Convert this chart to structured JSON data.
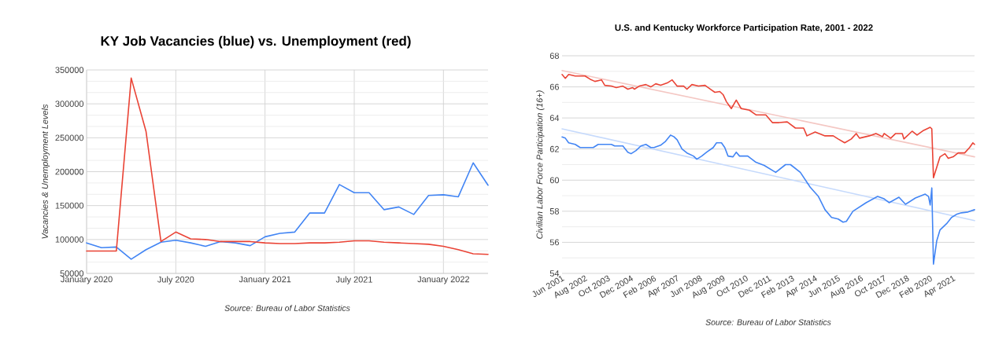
{
  "chart_data": [
    {
      "type": "line",
      "title": "KY Job Vacancies (blue) vs. Unemployment (red)",
      "ylabel": "Vacancies & Unemployment Levels",
      "annotations": [
        "Source: Bureau of Labor Statistics"
      ],
      "x": [
        "2020-01",
        "2020-02",
        "2020-03",
        "2020-04",
        "2020-05",
        "2020-06",
        "2020-07",
        "2020-08",
        "2020-09",
        "2020-10",
        "2020-11",
        "2020-12",
        "2021-01",
        "2021-02",
        "2021-03",
        "2021-04",
        "2021-05",
        "2021-06",
        "2021-07",
        "2021-08",
        "2021-09",
        "2021-10",
        "2021-11",
        "2021-12",
        "2022-01",
        "2022-02",
        "2022-03",
        "2022-04"
      ],
      "xlim": [
        "2020-01",
        "2022-04"
      ],
      "xticks": [
        {
          "value": "2020-01",
          "label": "January 2020"
        },
        {
          "value": "2020-07",
          "label": "July 2020"
        },
        {
          "value": "2021-01",
          "label": "January 2021"
        },
        {
          "value": "2021-07",
          "label": "July 2021"
        },
        {
          "value": "2022-01",
          "label": "January 2022"
        }
      ],
      "ylim": [
        50000,
        350000
      ],
      "yticks": [
        50000,
        100000,
        150000,
        200000,
        250000,
        300000,
        350000
      ],
      "grid": true,
      "series": [
        {
          "color": "#4285f4",
          "values": [
            95000,
            88000,
            89000,
            71000,
            85000,
            96000,
            99000,
            95000,
            90000,
            97000,
            95000,
            91000,
            104000,
            109000,
            111000,
            139000,
            139000,
            181000,
            169000,
            169000,
            144000,
            148000,
            137000,
            165000,
            166000,
            163000,
            213000,
            180000
          ]
        },
        {
          "color": "#ea4335",
          "values": [
            83000,
            83000,
            83000,
            338000,
            259000,
            97000,
            111000,
            101000,
            100000,
            97000,
            97000,
            97000,
            95000,
            94000,
            94000,
            95000,
            95000,
            96000,
            98000,
            98000,
            96000,
            95000,
            94000,
            93000,
            90000,
            85000,
            79000,
            78000
          ]
        }
      ]
    },
    {
      "type": "line",
      "title": "U.S. and Kentucky Workforce Participation Rate, 2001 - 2022",
      "ylabel": "Civilian Labor Force Participation (16+)",
      "annotations": [
        "Source: Bureau of Labor Statistics"
      ],
      "xlim": [
        "2001-06",
        "2022-05"
      ],
      "xticks": [
        {
          "value": "2001-06",
          "label": "Jun 2001"
        },
        {
          "value": "2002-08",
          "label": "Aug 2002"
        },
        {
          "value": "2003-10",
          "label": "Oct 2003"
        },
        {
          "value": "2004-12",
          "label": "Dec 2004"
        },
        {
          "value": "2006-02",
          "label": "Feb 2006"
        },
        {
          "value": "2007-04",
          "label": "Apr 2007"
        },
        {
          "value": "2008-06",
          "label": "Jun 2008"
        },
        {
          "value": "2009-08",
          "label": "Aug 2009"
        },
        {
          "value": "2010-10",
          "label": "Oct 2010"
        },
        {
          "value": "2011-12",
          "label": "Dec 2011"
        },
        {
          "value": "2013-02",
          "label": "Feb 2013"
        },
        {
          "value": "2014-04",
          "label": "Apr 2014"
        },
        {
          "value": "2015-06",
          "label": "Jun 2015"
        },
        {
          "value": "2016-08",
          "label": "Aug 2016"
        },
        {
          "value": "2017-10",
          "label": "Oct 2017"
        },
        {
          "value": "2018-12",
          "label": "Dec 2018"
        },
        {
          "value": "2020-02",
          "label": "Feb 2020"
        },
        {
          "value": "2021-04",
          "label": "Apr 2021"
        }
      ],
      "ylim": [
        54,
        68
      ],
      "yticks": [
        54,
        56,
        58,
        60,
        62,
        64,
        66,
        68
      ],
      "grid": "y",
      "series": [
        {
          "type": "line",
          "color": "#f4c7c3",
          "x": [
            "2001-06",
            "2022-05"
          ],
          "values": [
            67.05,
            61.5
          ]
        },
        {
          "type": "line",
          "color": "#c6dafc",
          "x": [
            "2001-06",
            "2022-05"
          ],
          "values": [
            63.3,
            57.4
          ]
        },
        {
          "color": "#ea4335",
          "x": [
            "2001-06",
            "2001-08",
            "2001-10",
            "2002-02",
            "2002-08",
            "2002-11",
            "2003-02",
            "2003-06",
            "2003-08",
            "2003-12",
            "2004-03",
            "2004-07",
            "2004-10",
            "2005-01",
            "2005-02",
            "2005-05",
            "2005-09",
            "2005-12",
            "2006-03",
            "2006-06",
            "2006-10",
            "2007-01",
            "2007-04",
            "2007-08",
            "2007-10",
            "2008-01",
            "2008-05",
            "2008-09",
            "2009-01",
            "2009-03",
            "2009-06",
            "2009-08",
            "2009-10",
            "2010-01",
            "2010-04",
            "2010-07",
            "2010-12",
            "2011-04",
            "2011-10",
            "2012-02",
            "2012-06",
            "2012-11",
            "2013-04",
            "2013-09",
            "2013-11",
            "2014-04",
            "2014-10",
            "2015-03",
            "2015-06",
            "2015-10",
            "2016-02",
            "2016-05",
            "2016-07",
            "2017-01",
            "2017-05",
            "2017-09",
            "2017-10",
            "2018-02",
            "2018-05",
            "2018-09",
            "2018-10",
            "2019-03",
            "2019-06",
            "2019-10",
            "2020-02",
            "2020-03",
            "2020-04",
            "2020-08",
            "2020-11",
            "2021-01",
            "2021-04",
            "2021-07",
            "2021-11",
            "2022-02",
            "2022-04",
            "2022-05"
          ],
          "values": [
            66.8,
            66.55,
            66.8,
            66.7,
            66.7,
            66.5,
            66.35,
            66.45,
            66.1,
            66.05,
            65.95,
            66.05,
            65.85,
            65.95,
            65.85,
            66.05,
            66.15,
            66.0,
            66.2,
            66.1,
            66.25,
            66.45,
            66.05,
            66.05,
            65.85,
            66.15,
            66.05,
            66.1,
            65.8,
            65.65,
            65.7,
            65.5,
            65.05,
            64.6,
            65.15,
            64.6,
            64.5,
            64.2,
            64.2,
            63.7,
            63.7,
            63.75,
            63.35,
            63.35,
            62.85,
            63.1,
            62.85,
            62.85,
            62.65,
            62.4,
            62.65,
            63.0,
            62.7,
            62.85,
            63.0,
            62.8,
            63.0,
            62.7,
            63.0,
            63.0,
            62.65,
            63.15,
            62.9,
            63.2,
            63.4,
            63.3,
            60.15,
            61.5,
            61.7,
            61.4,
            61.5,
            61.75,
            61.75,
            62.1,
            62.4,
            62.3
          ]
        },
        {
          "color": "#4285f4",
          "x": [
            "2001-06",
            "2001-08",
            "2001-10",
            "2002-02",
            "2002-05",
            "2003-01",
            "2003-04",
            "2003-12",
            "2004-02",
            "2004-07",
            "2004-10",
            "2004-12",
            "2005-03",
            "2005-06",
            "2005-09",
            "2005-12",
            "2006-02",
            "2006-06",
            "2006-09",
            "2006-12",
            "2007-02",
            "2007-04",
            "2007-07",
            "2007-10",
            "2008-02",
            "2008-04",
            "2008-07",
            "2008-10",
            "2009-02",
            "2009-04",
            "2009-07",
            "2009-09",
            "2009-11",
            "2010-02",
            "2010-04",
            "2010-06",
            "2010-11",
            "2011-04",
            "2011-09",
            "2012-04",
            "2012-10",
            "2013-01",
            "2013-07",
            "2014-01",
            "2014-06",
            "2014-10",
            "2015-02",
            "2015-06",
            "2015-09",
            "2015-11",
            "2016-03",
            "2016-11",
            "2017-06",
            "2017-10",
            "2018-01",
            "2018-07",
            "2018-11",
            "2019-05",
            "2019-11",
            "2020-01",
            "2020-02",
            "2020-03",
            "2020-04",
            "2020-06",
            "2020-08",
            "2020-12",
            "2021-03",
            "2021-06",
            "2021-09",
            "2022-01",
            "2022-05"
          ],
          "values": [
            62.78,
            62.7,
            62.4,
            62.3,
            62.1,
            62.1,
            62.3,
            62.3,
            62.2,
            62.2,
            61.8,
            61.7,
            61.9,
            62.2,
            62.3,
            62.1,
            62.1,
            62.25,
            62.5,
            62.9,
            62.8,
            62.6,
            62.0,
            61.75,
            61.55,
            61.35,
            61.55,
            61.8,
            62.1,
            62.4,
            62.4,
            62.1,
            61.55,
            61.5,
            61.8,
            61.55,
            61.55,
            61.15,
            60.95,
            60.5,
            61.0,
            61.0,
            60.5,
            59.55,
            58.95,
            58.1,
            57.6,
            57.5,
            57.3,
            57.35,
            58.0,
            58.55,
            58.95,
            58.8,
            58.55,
            58.9,
            58.45,
            58.85,
            59.1,
            58.95,
            58.4,
            59.5,
            54.6,
            56.1,
            56.8,
            57.2,
            57.6,
            57.8,
            57.9,
            57.95,
            58.1
          ]
        }
      ]
    }
  ]
}
